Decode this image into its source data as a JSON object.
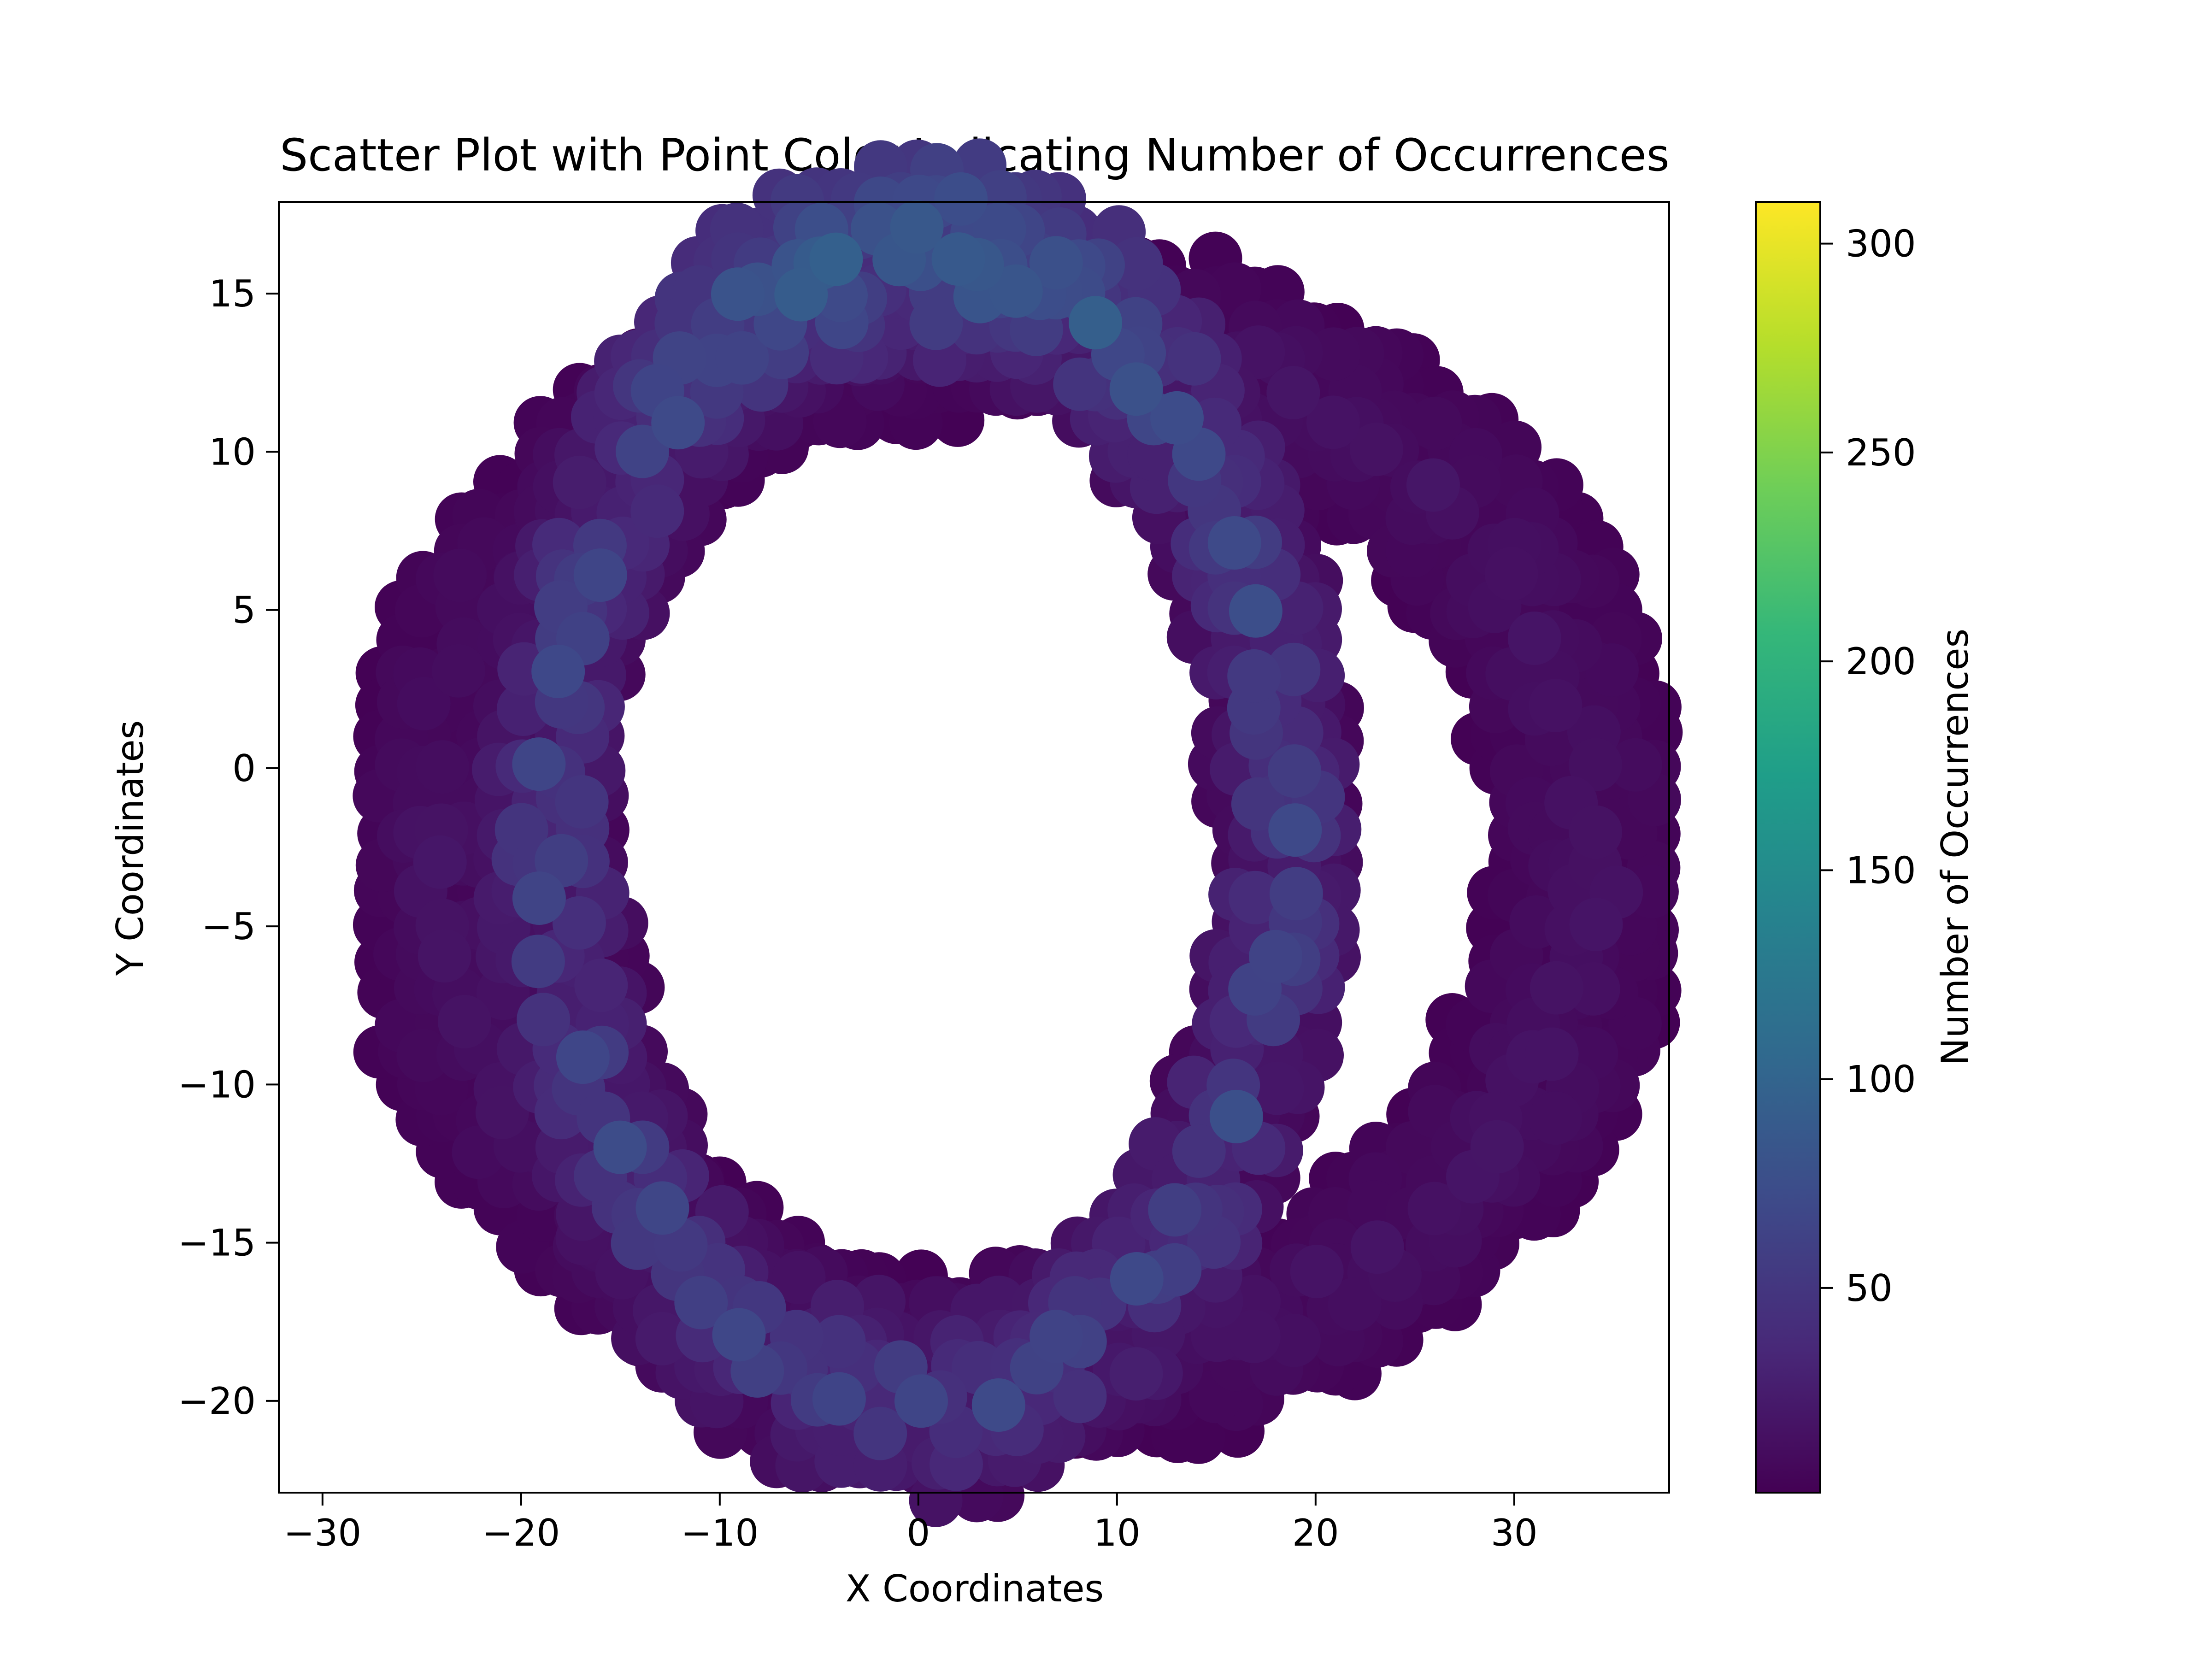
{
  "chart_data": {
    "type": "scatter",
    "title": "Scatter Plot with Point Color Indicating Number of Occurrences",
    "xlabel": "X Coordinates",
    "ylabel": "Y Coordinates",
    "xlim": [
      -32.2,
      37.8
    ],
    "ylim": [
      -22.9,
      17.9
    ],
    "xticks": [
      -30,
      -20,
      -10,
      0,
      10,
      20,
      30
    ],
    "xtick_labels": [
      "−30",
      "−20",
      "−10",
      "0",
      "10",
      "20",
      "30"
    ],
    "yticks": [
      -20,
      -15,
      -10,
      -5,
      0,
      5,
      10,
      15
    ],
    "ytick_labels": [
      "−20",
      "−15",
      "−10",
      "−5",
      "0",
      "5",
      "10",
      "15"
    ],
    "grid": false,
    "colorbar": {
      "label": "Number of Occurrences",
      "colormap": "viridis",
      "range": [
        1,
        310
      ],
      "ticks": [
        50,
        100,
        150,
        200,
        250,
        300
      ],
      "tick_labels": [
        "50",
        "100",
        "150",
        "200",
        "250",
        "300"
      ]
    },
    "colormap_stops": [
      "#440154",
      "#482878",
      "#3e4989",
      "#31688e",
      "#26828e",
      "#1f9e89",
      "#35b779",
      "#6ece58",
      "#b5de2b",
      "#fde725"
    ],
    "series": [
      {
        "shape": "ellipse",
        "cx": 0,
        "cy": -2,
        "rx": 18.5,
        "ry": 18,
        "band_width": 5.5,
        "count_range": [
          5,
          80
        ]
      },
      {
        "shape": "ellipse",
        "cx": 5,
        "cy": -2.5,
        "rx": 29,
        "ry": 16.5,
        "band_width": 4.5,
        "count_range": [
          2,
          20
        ]
      }
    ]
  }
}
